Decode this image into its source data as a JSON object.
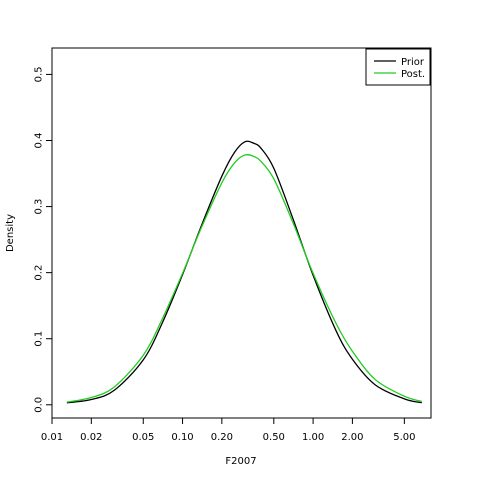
{
  "chart_data": {
    "type": "line",
    "title": "",
    "xlabel": "F2007",
    "ylabel": "Density",
    "x_scale": "log",
    "xlim": [
      0.01,
      8.0
    ],
    "ylim": [
      -0.02,
      0.54
    ],
    "x_ticks": [
      {
        "value": 0.01,
        "label": "0.01"
      },
      {
        "value": 0.02,
        "label": "0.02"
      },
      {
        "value": 0.05,
        "label": "0.05"
      },
      {
        "value": 0.1,
        "label": "0.10"
      },
      {
        "value": 0.2,
        "label": "0.20"
      },
      {
        "value": 0.5,
        "label": "0.50"
      },
      {
        "value": 1.0,
        "label": "1.00"
      },
      {
        "value": 2.0,
        "label": "2.00"
      },
      {
        "value": 5.0,
        "label": "5.00"
      }
    ],
    "y_ticks": [
      {
        "value": 0.0,
        "label": "0.0"
      },
      {
        "value": 0.1,
        "label": "0.1"
      },
      {
        "value": 0.2,
        "label": "0.2"
      },
      {
        "value": 0.3,
        "label": "0.3"
      },
      {
        "value": 0.4,
        "label": "0.4"
      },
      {
        "value": 0.5,
        "label": "0.5"
      }
    ],
    "grid": false,
    "legend_position": "top-right",
    "series": [
      {
        "name": "Prior",
        "color": "#000000",
        "x": [
          0.013,
          0.02,
          0.03,
          0.05,
          0.07,
          0.1,
          0.14,
          0.2,
          0.25,
          0.3,
          0.35,
          0.4,
          0.5,
          0.7,
          1.0,
          1.5,
          2.0,
          3.0,
          5.0,
          6.8
        ],
        "y": [
          0.003,
          0.008,
          0.022,
          0.068,
          0.124,
          0.197,
          0.272,
          0.346,
          0.382,
          0.398,
          0.396,
          0.388,
          0.358,
          0.282,
          0.196,
          0.112,
          0.069,
          0.03,
          0.009,
          0.003
        ]
      },
      {
        "name": "Post.",
        "color": "#22cc22",
        "x": [
          0.013,
          0.02,
          0.03,
          0.05,
          0.07,
          0.1,
          0.14,
          0.2,
          0.25,
          0.3,
          0.35,
          0.4,
          0.5,
          0.7,
          1.0,
          1.5,
          2.0,
          3.0,
          5.0,
          6.8
        ],
        "y": [
          0.004,
          0.011,
          0.027,
          0.075,
          0.13,
          0.199,
          0.269,
          0.336,
          0.366,
          0.378,
          0.376,
          0.368,
          0.342,
          0.276,
          0.199,
          0.123,
          0.081,
          0.038,
          0.013,
          0.005
        ]
      }
    ]
  }
}
